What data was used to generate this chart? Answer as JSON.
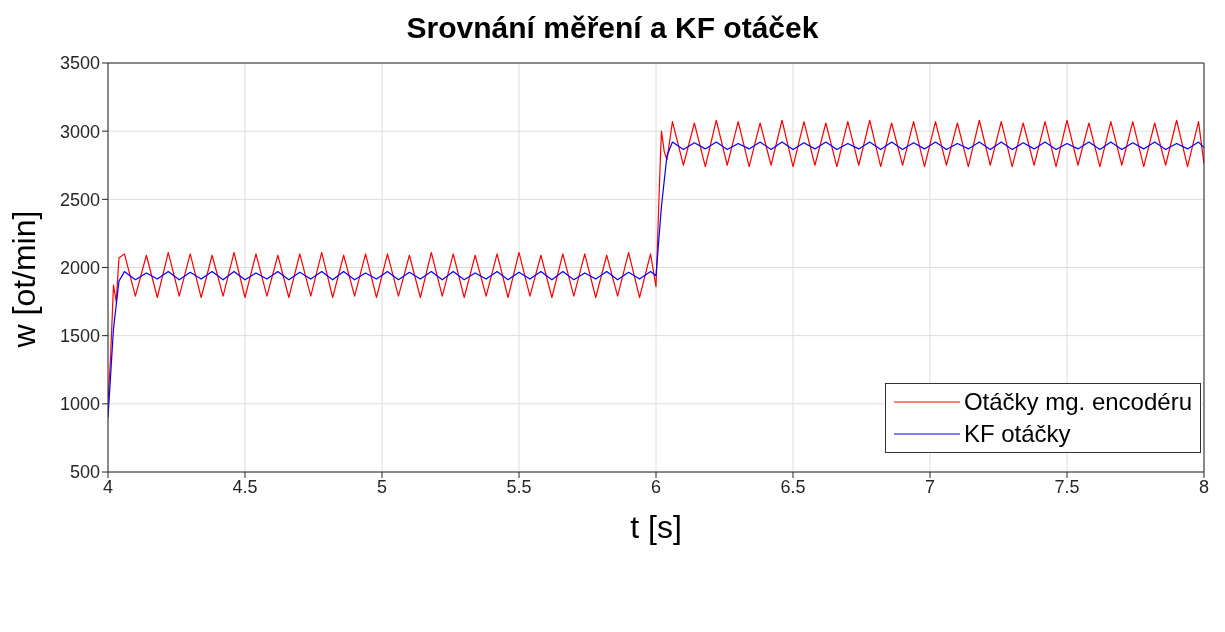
{
  "chart_data": {
    "type": "line",
    "title": "Srovnání měření a KF otáček",
    "xlabel": "t [s]",
    "ylabel": "w [ot/min]",
    "xlim": [
      4,
      8
    ],
    "xticks": [
      4,
      4.5,
      5,
      5.5,
      6,
      6.5,
      7,
      7.5,
      8
    ],
    "ylim": [
      500,
      3500
    ],
    "yticks": [
      500,
      1000,
      1500,
      2000,
      2500,
      3000,
      3500
    ],
    "grid": true,
    "legend": "bottom right",
    "marker": "none",
    "line_style": "solid",
    "series": [
      {
        "name": "Otáčky mg. encodéru",
        "color": "#ff0000",
        "x": [
          4,
          4.01,
          4.02,
          4.03,
          4.04,
          4.06,
          4.1,
          4.14,
          4.18,
          4.22,
          4.26,
          4.3,
          4.34,
          4.38,
          4.42,
          4.46,
          4.5,
          4.54,
          4.58,
          4.62,
          4.66,
          4.7,
          4.74,
          4.78,
          4.82,
          4.86,
          4.9,
          4.94,
          4.98,
          5.02,
          5.06,
          5.1,
          5.14,
          5.18,
          5.22,
          5.26,
          5.3,
          5.34,
          5.38,
          5.42,
          5.46,
          5.5,
          5.54,
          5.58,
          5.62,
          5.66,
          5.7,
          5.74,
          5.78,
          5.82,
          5.86,
          5.9,
          5.94,
          5.98,
          6,
          6.01,
          6.015,
          6.02,
          6.03,
          6.04,
          6.06,
          6.1,
          6.14,
          6.18,
          6.22,
          6.26,
          6.3,
          6.34,
          6.38,
          6.42,
          6.46,
          6.5,
          6.54,
          6.58,
          6.62,
          6.66,
          6.7,
          6.74,
          6.78,
          6.82,
          6.86,
          6.9,
          6.94,
          6.98,
          7.02,
          7.06,
          7.1,
          7.14,
          7.18,
          7.22,
          7.26,
          7.3,
          7.34,
          7.38,
          7.42,
          7.46,
          7.5,
          7.54,
          7.58,
          7.62,
          7.66,
          7.7,
          7.74,
          7.78,
          7.82,
          7.86,
          7.9,
          7.94,
          7.98,
          8
        ],
        "values": [
          1000,
          1370,
          1870,
          1750,
          2070,
          2100,
          1790,
          2090,
          1780,
          2110,
          1790,
          2100,
          1780,
          2090,
          1790,
          2110,
          1780,
          2100,
          1790,
          2090,
          1780,
          2100,
          1790,
          2110,
          1780,
          2090,
          1790,
          2100,
          1780,
          2100,
          1790,
          2090,
          1780,
          2110,
          1790,
          2100,
          1780,
          2090,
          1790,
          2100,
          1780,
          2110,
          1790,
          2090,
          1780,
          2100,
          1790,
          2100,
          1780,
          2090,
          1790,
          2110,
          1780,
          2100,
          1860,
          2450,
          2750,
          3000,
          2850,
          2790,
          3070,
          2750,
          3060,
          2740,
          3080,
          2750,
          3070,
          2740,
          3060,
          2750,
          3080,
          2740,
          3070,
          2750,
          3060,
          2740,
          3070,
          2750,
          3080,
          2740,
          3060,
          2750,
          3070,
          2740,
          3070,
          2750,
          3060,
          2740,
          3080,
          2750,
          3070,
          2740,
          3060,
          2750,
          3070,
          2740,
          3080,
          2750,
          3060,
          2740,
          3070,
          2750,
          3070,
          2740,
          3060,
          2750,
          3080,
          2740,
          3070,
          2760
        ]
      },
      {
        "name": "KF otáčky",
        "color": "#0000ff",
        "x": [
          4,
          4.02,
          4.04,
          4.06,
          4.1,
          4.14,
          4.18,
          4.22,
          4.26,
          4.3,
          4.34,
          4.38,
          4.42,
          4.46,
          4.5,
          4.54,
          4.58,
          4.62,
          4.66,
          4.7,
          4.74,
          4.78,
          4.82,
          4.86,
          4.9,
          4.94,
          4.98,
          5.02,
          5.06,
          5.1,
          5.14,
          5.18,
          5.22,
          5.26,
          5.3,
          5.34,
          5.38,
          5.42,
          5.46,
          5.5,
          5.54,
          5.58,
          5.62,
          5.66,
          5.7,
          5.74,
          5.78,
          5.82,
          5.86,
          5.9,
          5.94,
          5.98,
          6,
          6.02,
          6.04,
          6.06,
          6.1,
          6.14,
          6.18,
          6.22,
          6.26,
          6.3,
          6.34,
          6.38,
          6.42,
          6.46,
          6.5,
          6.54,
          6.58,
          6.62,
          6.66,
          6.7,
          6.74,
          6.78,
          6.82,
          6.86,
          6.9,
          6.94,
          6.98,
          7.02,
          7.06,
          7.1,
          7.14,
          7.18,
          7.22,
          7.26,
          7.3,
          7.34,
          7.38,
          7.42,
          7.46,
          7.5,
          7.54,
          7.58,
          7.62,
          7.66,
          7.7,
          7.74,
          7.78,
          7.82,
          7.86,
          7.9,
          7.94,
          7.98,
          8
        ],
        "values": [
          900,
          1550,
          1900,
          1970,
          1910,
          1960,
          1915,
          1970,
          1910,
          1965,
          1915,
          1970,
          1910,
          1970,
          1910,
          1960,
          1915,
          1970,
          1910,
          1965,
          1915,
          1970,
          1910,
          1970,
          1910,
          1960,
          1915,
          1970,
          1910,
          1965,
          1915,
          1970,
          1910,
          1970,
          1910,
          1960,
          1915,
          1970,
          1910,
          1965,
          1915,
          1970,
          1910,
          1970,
          1910,
          1960,
          1915,
          1970,
          1910,
          1965,
          1915,
          1970,
          1940,
          2450,
          2820,
          2920,
          2865,
          2915,
          2870,
          2920,
          2865,
          2910,
          2870,
          2920,
          2865,
          2920,
          2865,
          2915,
          2870,
          2920,
          2865,
          2910,
          2870,
          2920,
          2865,
          2920,
          2865,
          2915,
          2870,
          2920,
          2865,
          2910,
          2870,
          2920,
          2865,
          2920,
          2865,
          2915,
          2870,
          2920,
          2865,
          2910,
          2870,
          2920,
          2865,
          2920,
          2865,
          2915,
          2870,
          2920,
          2865,
          2910,
          2870,
          2920,
          2880
        ]
      }
    ]
  }
}
